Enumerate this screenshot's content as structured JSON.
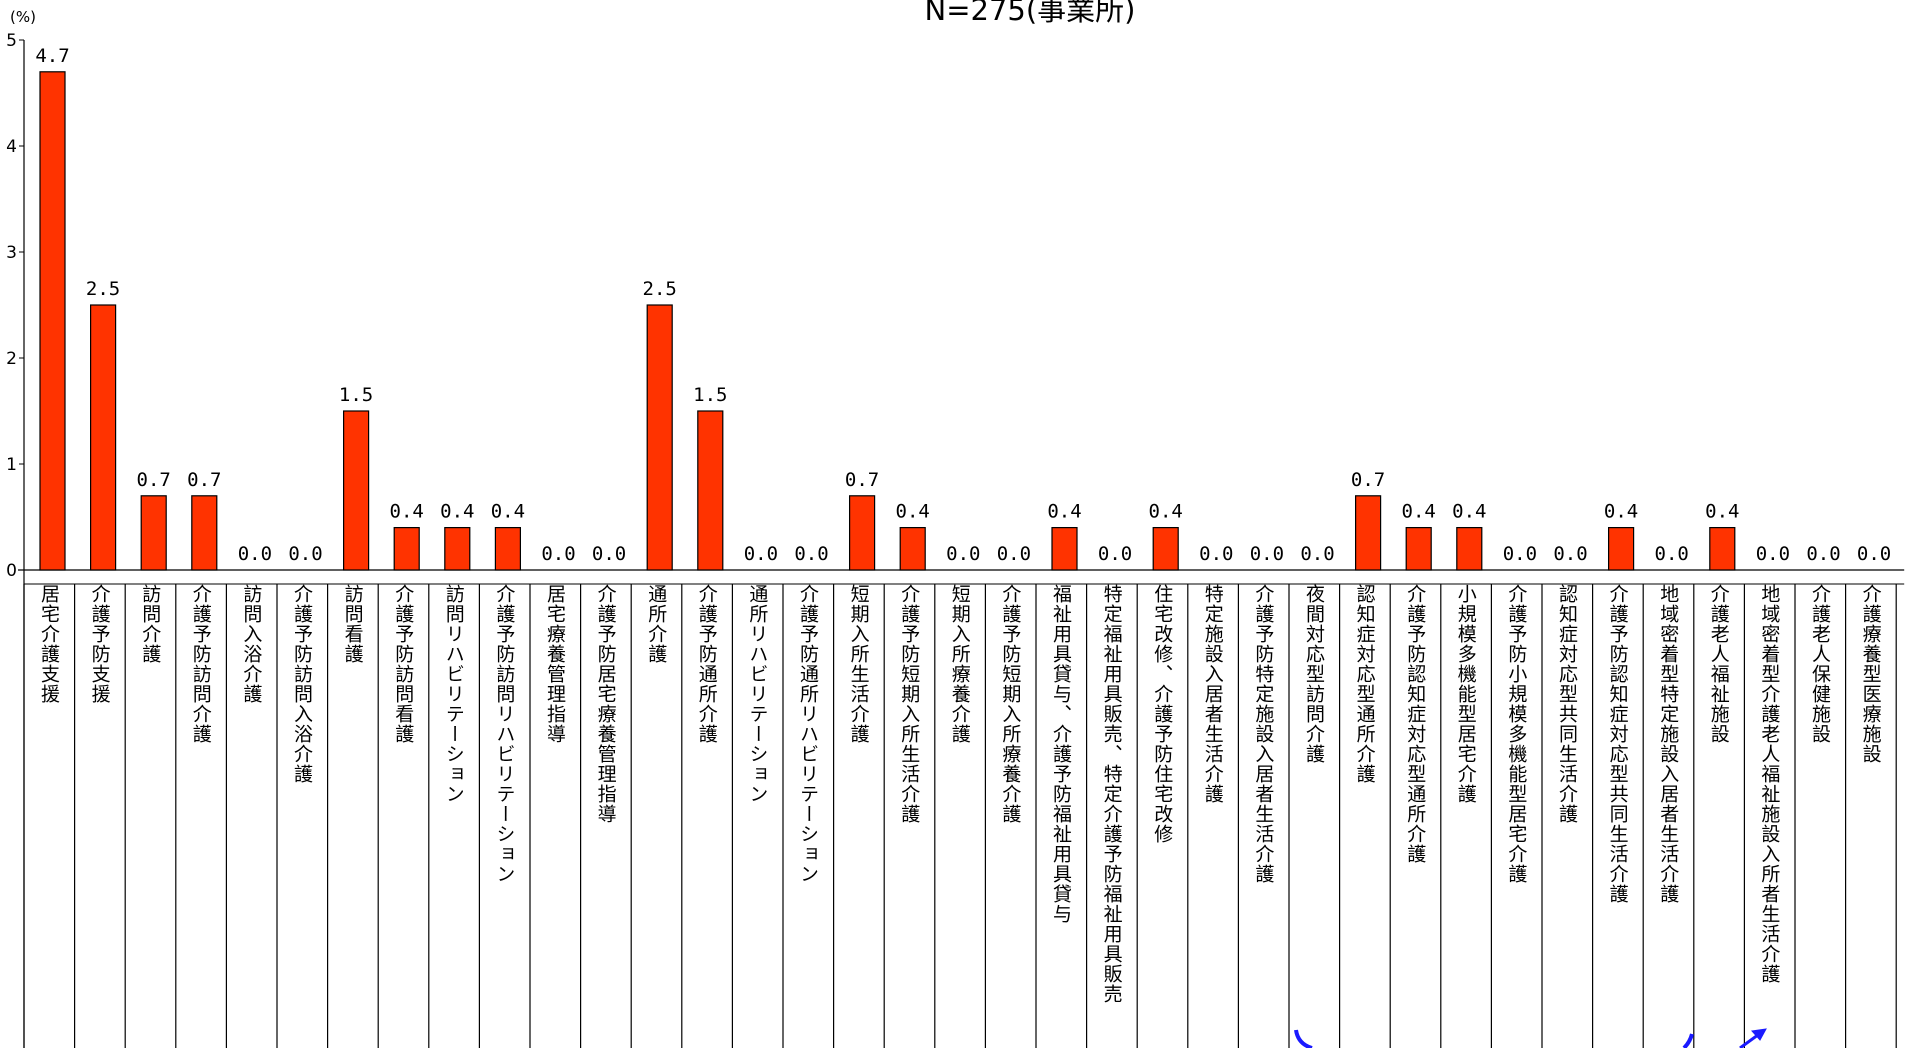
{
  "header": {
    "subtitle": "N=275(事業所)",
    "unit": "(%)"
  },
  "chart_data": {
    "type": "bar",
    "subtitle": "N=275(事業所)",
    "ylabel": "(%)",
    "ylim": [
      0,
      5
    ],
    "yticks": [
      0,
      1,
      2,
      3,
      4,
      5
    ],
    "grid": false,
    "bar_color": "#ff3300",
    "categories": [
      "居宅介護支援",
      "介護予防支援",
      "訪問介護",
      "介護予防訪問介護",
      "訪問入浴介護",
      "介護予防訪問入浴介護",
      "訪問看護",
      "介護予防訪問看護",
      "訪問リハビリテーション",
      "介護予防訪問リハビリテーション",
      "居宅療養管理指導",
      "介護予防居宅療養管理指導",
      "通所介護",
      "介護予防通所介護",
      "通所リハビリテーション",
      "介護予防通所リハビリテーション",
      "短期入所生活介護",
      "介護予防短期入所生活介護",
      "短期入所療養介護",
      "介護予防短期入所療養介護",
      "福祉用具貸与、介護予防福祉用具貸与",
      "特定福祉用具販売、特定介護予防福祉用具販売",
      "住宅改修、介護予防住宅改修",
      "特定施設入居者生活介護",
      "介護予防特定施設入居者生活介護",
      "夜間対応型訪問介護",
      "認知症対応型通所介護",
      "介護予防認知症対応型通所介護",
      "小規模多機能型居宅介護",
      "介護予防小規模多機能型居宅介護",
      "認知症対応型共同生活介護",
      "介護予防認知症対応型共同生活介護",
      "地域密着型特定施設入居者生活介護",
      "介護老人福祉施設",
      "地域密着型介護老人福祉施設入所者生活介護",
      "介護老人保健施設",
      "介護療養型医療施設"
    ],
    "values": [
      4.7,
      2.5,
      0.7,
      0.7,
      0.0,
      0.0,
      1.5,
      0.4,
      0.4,
      0.4,
      0.0,
      0.0,
      2.5,
      1.5,
      0.0,
      0.0,
      0.7,
      0.4,
      0.0,
      0.0,
      0.4,
      0.0,
      0.4,
      0.0,
      0.0,
      0.0,
      0.7,
      0.4,
      0.4,
      0.0,
      0.0,
      0.4,
      0.0,
      0.4,
      0.0,
      0.0,
      0.0
    ],
    "labels": [
      "4.7",
      "2.5",
      "0.7",
      "0.7",
      "0.0",
      "0.0",
      "1.5",
      "0.4",
      "0.4",
      "0.4",
      "0.0",
      "0.0",
      "2.5",
      "1.5",
      "0.0",
      "0.0",
      "0.7",
      "0.4",
      "0.0",
      "0.0",
      "0.4",
      "0.0",
      "0.4",
      "0.0",
      "0.0",
      "0.0",
      "0.7",
      "0.4",
      "0.4",
      "0.0",
      "0.0",
      "0.4",
      "0.0",
      "0.4",
      "0.0",
      "0.0",
      "0.0"
    ],
    "annotation_color": "#1a1aff"
  }
}
